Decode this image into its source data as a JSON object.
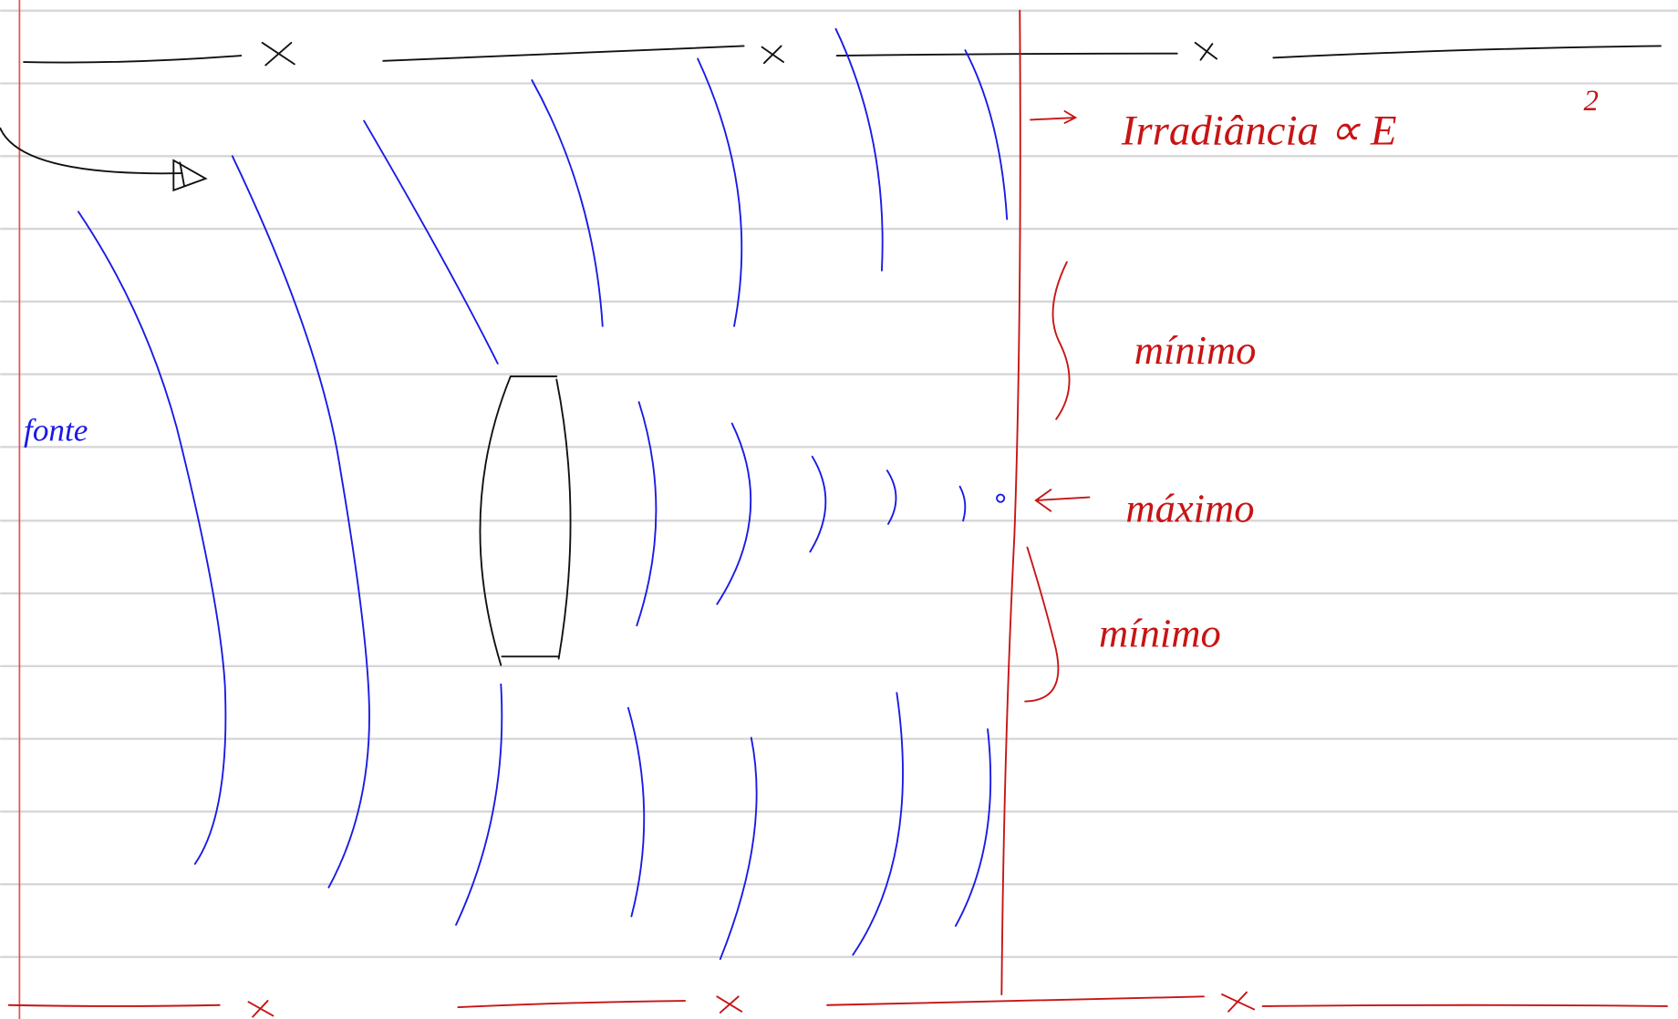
{
  "annotations": {
    "source": "fonte",
    "irradiance": "Irradiância ∝ E",
    "irradiance_exponent": "2",
    "minimum_top": "mínimo",
    "maximum": "máximo",
    "minimum_bottom": "mínimo"
  }
}
